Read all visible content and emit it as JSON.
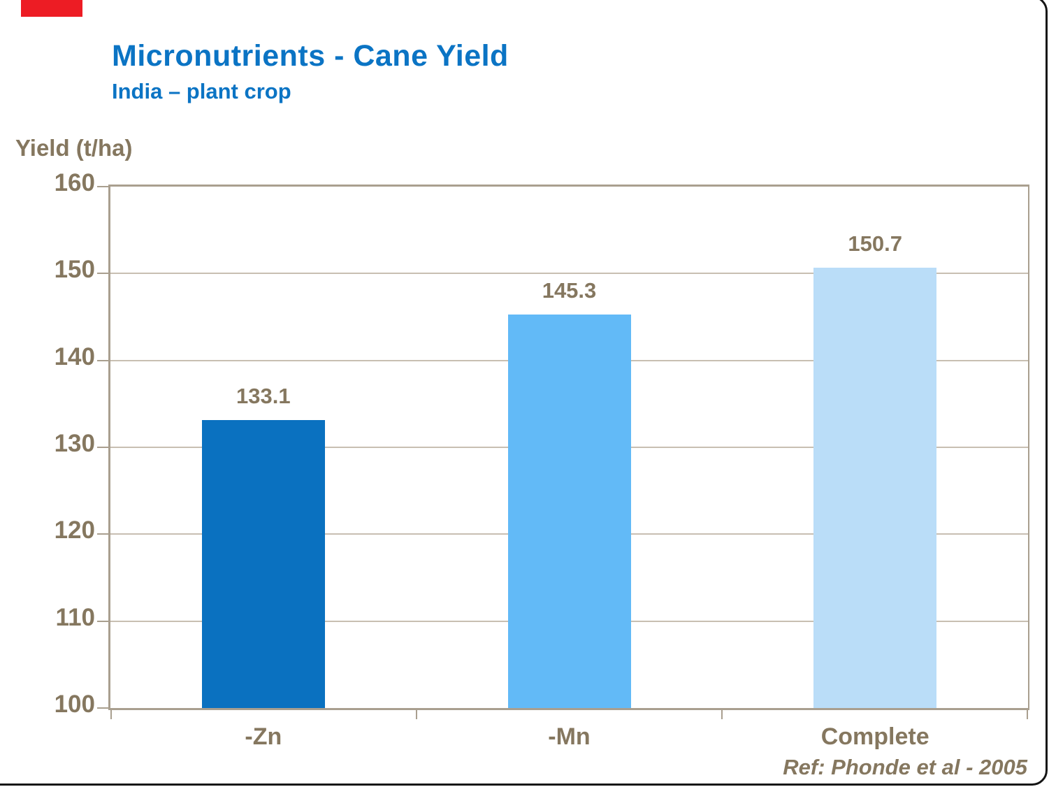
{
  "header": {
    "title": "Micronutrients - Cane Yield",
    "subtitle": "India – plant crop"
  },
  "chart_data": {
    "type": "bar",
    "title": "Micronutrients - Cane Yield",
    "subtitle": "India – plant crop",
    "ylabel": "Yield (t/ha)",
    "xlabel": "",
    "categories": [
      "-Zn",
      "-Mn",
      "Complete"
    ],
    "values": [
      133.1,
      145.3,
      150.7
    ],
    "value_labels": [
      "133.1",
      "145.3",
      "150.7"
    ],
    "bar_colors": [
      "#0A71C0",
      "#62BAF7",
      "#BADDF8"
    ],
    "ylim": [
      100,
      160
    ],
    "yticks": [
      "160",
      "150",
      "140",
      "130",
      "120",
      "110",
      "100"
    ],
    "grid": true,
    "legend": "none"
  },
  "footer": {
    "reference": "Ref: Phonde et al - 2005"
  },
  "colors": {
    "accent_red": "#ED1C24",
    "title_blue": "#0B74C4",
    "label_brown": "#85775F",
    "grid_line": "#C8BFB2",
    "axis_line": "#A99F8F"
  }
}
